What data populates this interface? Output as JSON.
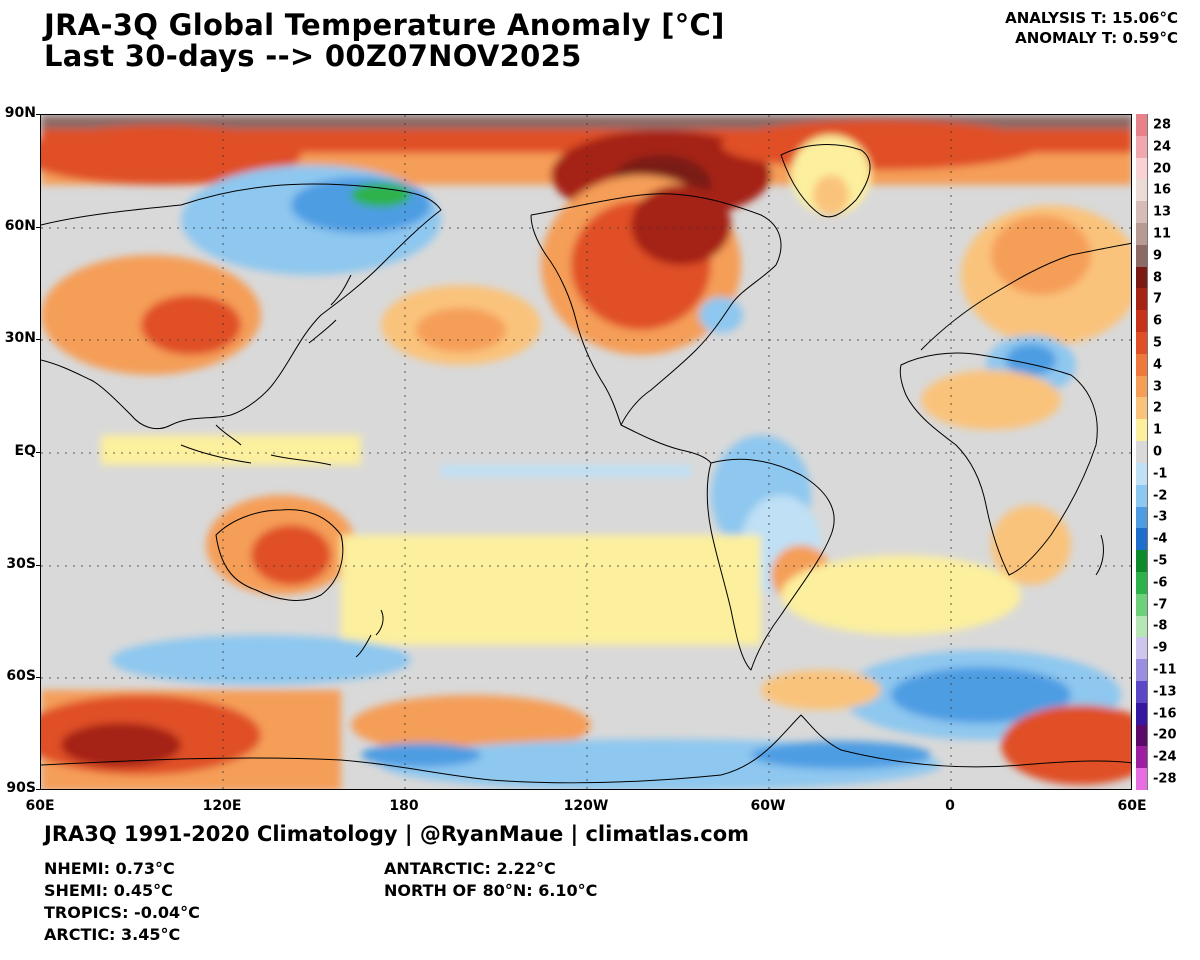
{
  "header": {
    "title_line1": "JRA-3Q Global Temperature Anomaly [°C]",
    "title_line2": "Last 30-days --> 00Z07NOV2025",
    "analysis_t": "ANALYSIS T: 15.06°C",
    "anomaly_t": "ANOMALY T: 0.59°C"
  },
  "axes": {
    "lat_labels": [
      "90N",
      "60N",
      "30N",
      "EQ",
      "30S",
      "60S",
      "90S"
    ],
    "lon_labels": [
      "60E",
      "120E",
      "180",
      "120W",
      "60W",
      "0",
      "60E"
    ]
  },
  "colorbar": {
    "levels": [
      {
        "label": "28",
        "color": "#e8828a"
      },
      {
        "label": "24",
        "color": "#f0a8ae"
      },
      {
        "label": "20",
        "color": "#f8d2d4"
      },
      {
        "label": "16",
        "color": "#ecdcd8"
      },
      {
        "label": "13",
        "color": "#d6bcb6"
      },
      {
        "label": "11",
        "color": "#b89a94"
      },
      {
        "label": "9",
        "color": "#8c6a66"
      },
      {
        "label": "8",
        "color": "#7a1a12"
      },
      {
        "label": "7",
        "color": "#a52412"
      },
      {
        "label": "6",
        "color": "#c8341a"
      },
      {
        "label": "5",
        "color": "#e05026"
      },
      {
        "label": "4",
        "color": "#ed7a3c"
      },
      {
        "label": "3",
        "color": "#f59e58"
      },
      {
        "label": "2",
        "color": "#fac37c"
      },
      {
        "label": "1",
        "color": "#fcef9e"
      },
      {
        "label": "0",
        "color": "#d9d9d9"
      },
      {
        "label": "-1",
        "color": "#bfe0f5"
      },
      {
        "label": "-2",
        "color": "#8ec7ef"
      },
      {
        "label": "-3",
        "color": "#4e9de3"
      },
      {
        "label": "-4",
        "color": "#1e6fcd"
      },
      {
        "label": "-5",
        "color": "#0e8a2a"
      },
      {
        "label": "-6",
        "color": "#2fb24c"
      },
      {
        "label": "-7",
        "color": "#6ed07a"
      },
      {
        "label": "-8",
        "color": "#b6e6b6"
      },
      {
        "label": "-9",
        "color": "#cfc6ee"
      },
      {
        "label": "-11",
        "color": "#9a8ee0"
      },
      {
        "label": "-13",
        "color": "#5a48c8"
      },
      {
        "label": "-16",
        "color": "#3618a0"
      },
      {
        "label": "-20",
        "color": "#5c0a6a"
      },
      {
        "label": "-24",
        "color": "#9e1ea2"
      },
      {
        "label": "-28",
        "color": "#e66ee0"
      }
    ]
  },
  "footer": {
    "credits": "JRA3Q 1991-2020 Climatology | @RyanMaue | climatlas.com",
    "regions_left": [
      "NHEMI: 0.73°C",
      "SHEMI: 0.45°C",
      "TROPICS: -0.04°C",
      "ARCTIC: 3.45°C"
    ],
    "regions_right": [
      "ANTARCTIC: 2.22°C",
      "NORTH OF 80°N: 6.10°C"
    ]
  },
  "colors": {
    "ocean_neutral": "#d9d9d9",
    "warm_light": "#fcef9e",
    "warm_mid": "#f59e58",
    "warm_strong": "#e05026",
    "warm_extreme": "#a52412",
    "cold_light": "#bfe0f5",
    "cold_mid": "#8ec7ef",
    "cold_strong": "#4e9de3",
    "cold_green": "#2fb24c",
    "very_hot": "#8c6a66"
  }
}
